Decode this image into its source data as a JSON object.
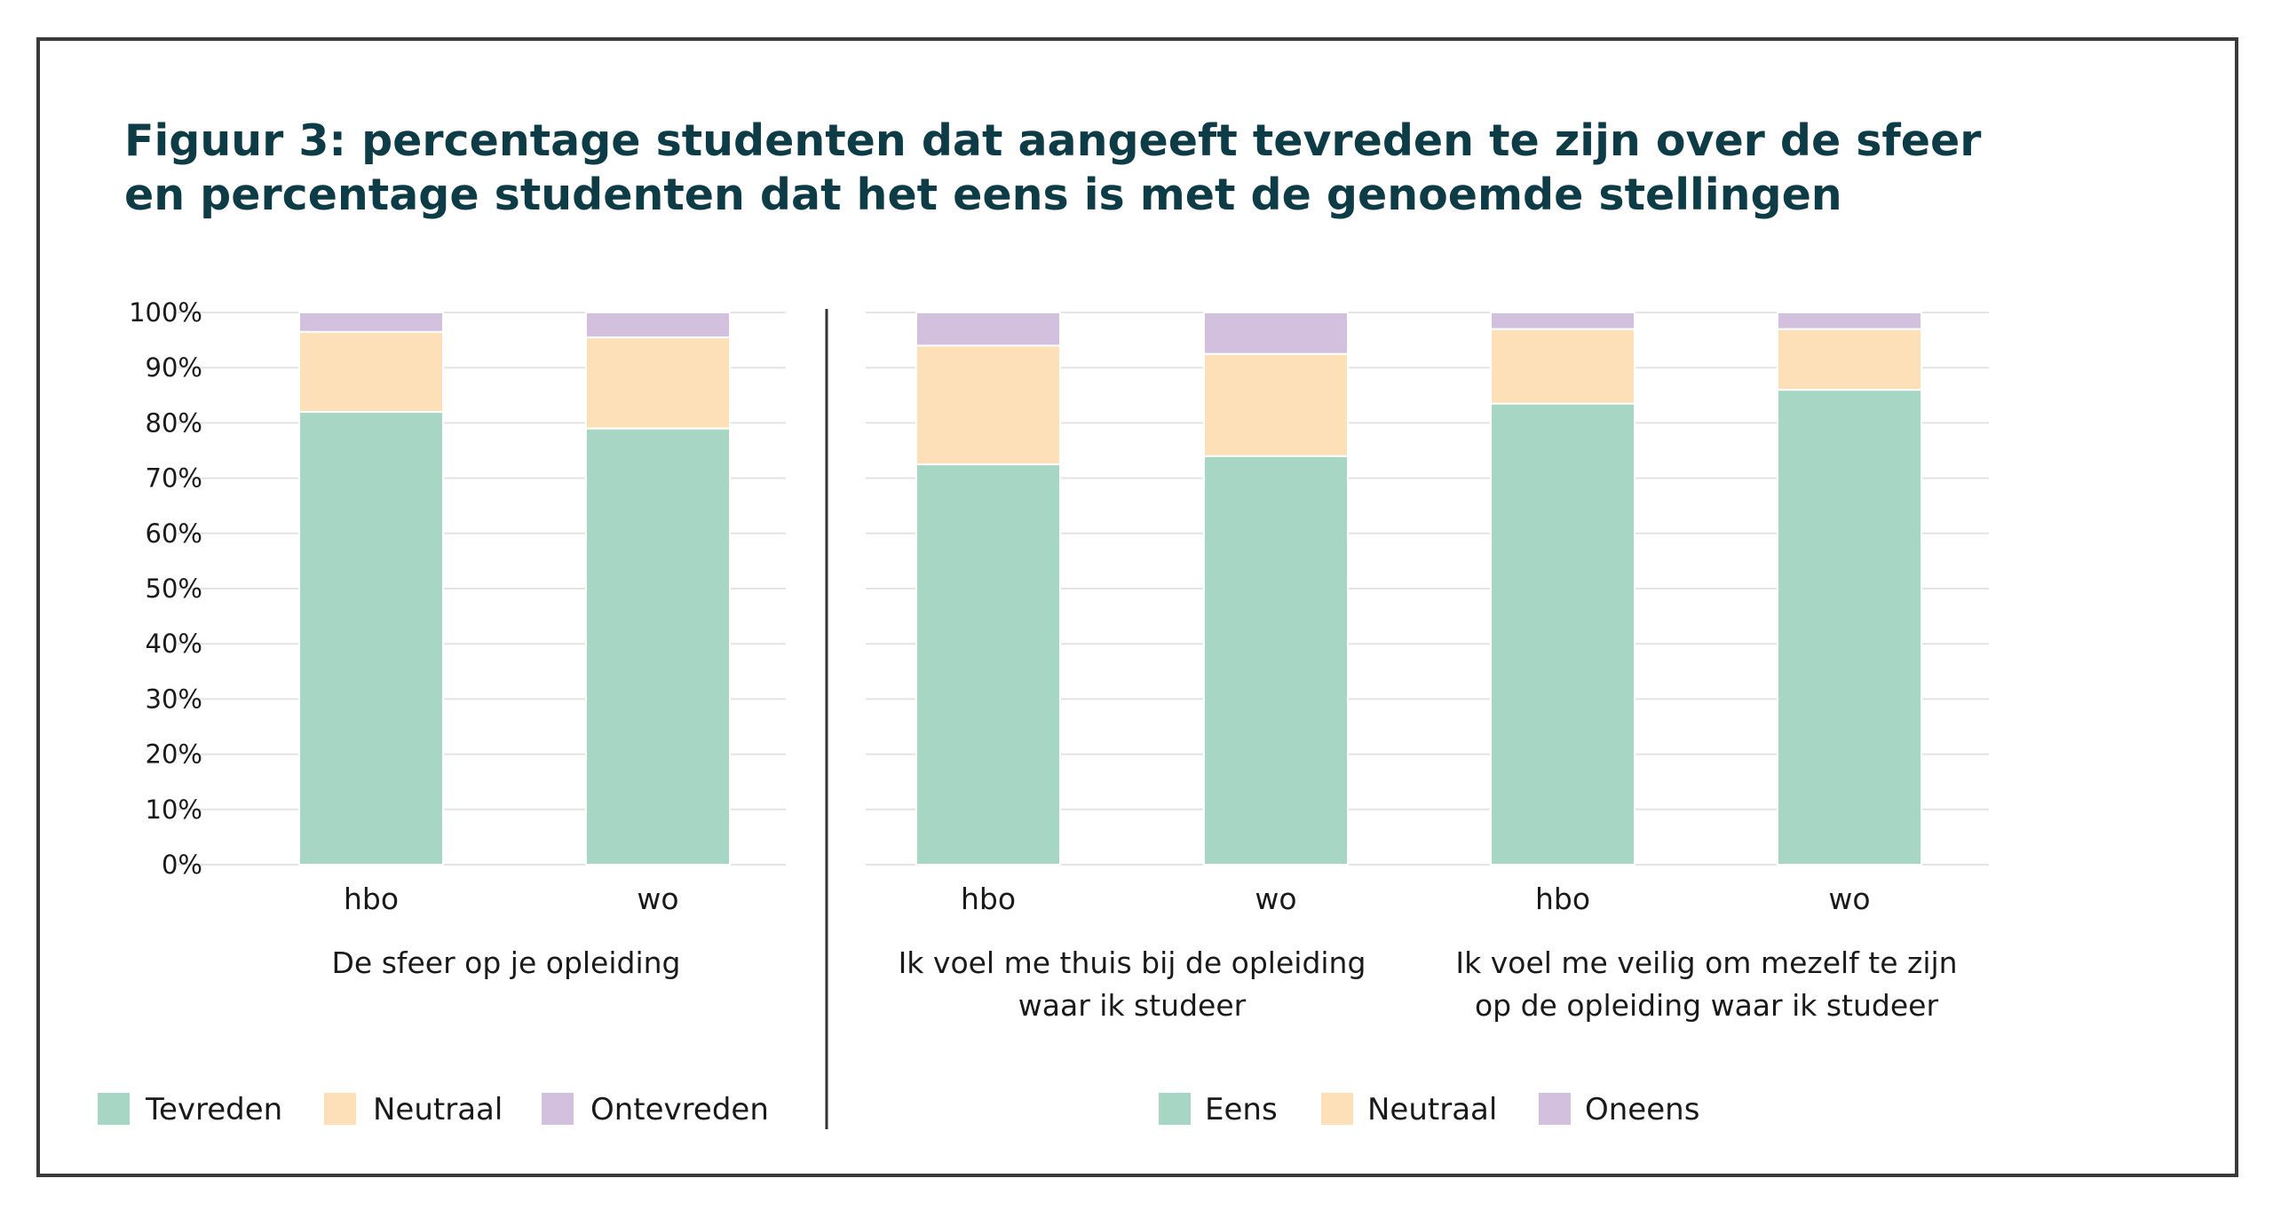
{
  "title_lines": [
    "Figuur 3: percentage studenten dat aangeeft tevreden te zijn over de sfeer",
    "en percentage studenten dat het eens is met de genoemde stellingen"
  ],
  "colors": {
    "positive": "#a8d6c4",
    "neutral": "#fddfb8",
    "negative": "#d3c0df",
    "grid": "#e4e4e4",
    "divider": "#333333",
    "title": "#0d3b46"
  },
  "chart_data": [
    {
      "type": "bar",
      "stacked": true,
      "yticks": [
        "0%",
        "10%",
        "20%",
        "30%",
        "40%",
        "50%",
        "60%",
        "70%",
        "80%",
        "90%",
        "100%"
      ],
      "ylim": [
        0,
        100
      ],
      "grid": true,
      "legend_position": "bottom",
      "groups": [
        {
          "label_lines": [
            "De sfeer op je opleiding"
          ],
          "bars": [
            "hbo",
            "wo"
          ]
        }
      ],
      "series": [
        {
          "name": "Tevreden",
          "values": [
            82,
            79
          ]
        },
        {
          "name": "Neutraal",
          "values": [
            14.5,
            16.5
          ]
        },
        {
          "name": "Ontevreden",
          "values": [
            3.5,
            4.5
          ]
        }
      ]
    },
    {
      "type": "bar",
      "stacked": true,
      "ylim": [
        0,
        100
      ],
      "grid": true,
      "legend_position": "bottom",
      "groups": [
        {
          "label_lines": [
            "Ik voel me thuis bij de opleiding",
            "waar ik studeer"
          ],
          "bars": [
            "hbo",
            "wo"
          ]
        },
        {
          "label_lines": [
            "Ik voel me veilig om mezelf te zijn",
            "op de opleiding waar ik studeer"
          ],
          "bars": [
            "hbo",
            "wo"
          ]
        }
      ],
      "series": [
        {
          "name": "Eens",
          "values": [
            72.5,
            74,
            83.5,
            86
          ]
        },
        {
          "name": "Neutraal",
          "values": [
            21.5,
            18.5,
            13.5,
            11
          ]
        },
        {
          "name": "Oneens",
          "values": [
            6,
            7.5,
            3,
            3
          ]
        }
      ]
    }
  ]
}
